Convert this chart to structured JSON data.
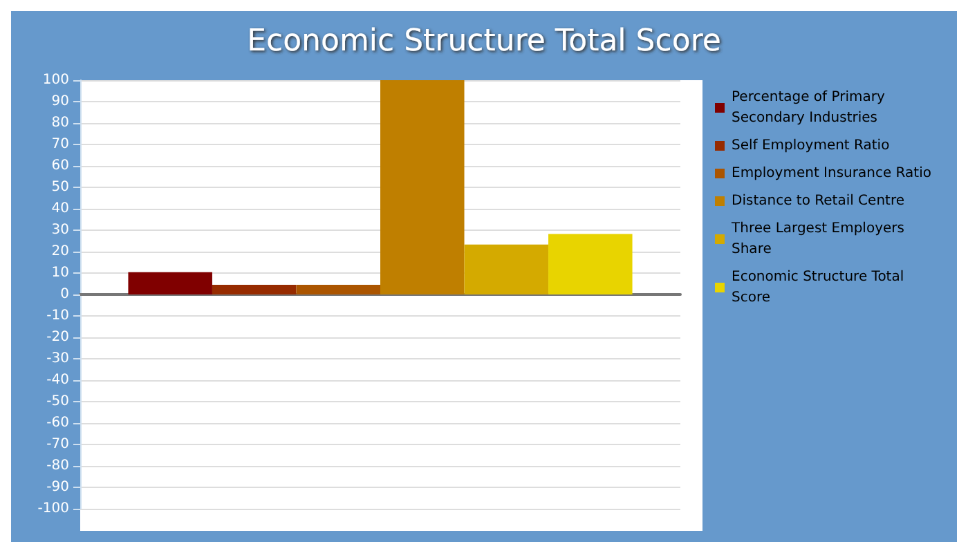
{
  "chart_data": {
    "type": "bar",
    "title": "Economic Structure Total Score",
    "categories": [
      null
    ],
    "series": [
      {
        "name": "Percentage of Primary Secondary Industries",
        "color": "#800000",
        "values": [
          10.4
        ]
      },
      {
        "name": "Self Employment Ratio",
        "color": "#962b00",
        "values": [
          4.5
        ]
      },
      {
        "name": "Employment Insurance Ratio",
        "color": "#ab5500",
        "values": [
          4.5
        ]
      },
      {
        "name": "Distance to Retail Centre",
        "color": "#bf7f00",
        "values": [
          100
        ]
      },
      {
        "name": "Three Largest Employers Share",
        "color": "#d4aa00",
        "values": [
          23.3
        ]
      },
      {
        "name": "Economic Structure Total Score",
        "color": "#e8d400",
        "values": [
          28.2
        ]
      }
    ],
    "ylim": [
      -100,
      100
    ],
    "yticks": [
      -100,
      -90,
      -80,
      -70,
      -60,
      -50,
      -40,
      -30,
      -20,
      -10,
      0,
      10,
      20,
      30,
      40,
      50,
      60,
      70,
      80,
      90,
      100
    ],
    "grid": "y",
    "legend": "right"
  }
}
